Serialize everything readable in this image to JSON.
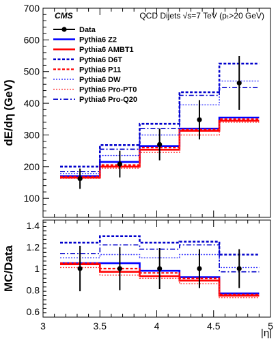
{
  "experiment": "CMS",
  "header": "QCD Dijets  √s=7 TeV (pₜ>20 GeV)",
  "chart_data": [
    {
      "type": "line",
      "panel": "upper",
      "ylabel": "dE/dη (GeV)",
      "xlabel": "",
      "ylim": [
        40,
        700
      ],
      "xlim": [
        3.0,
        5.0
      ],
      "yticks": [
        100,
        200,
        300,
        400,
        500,
        600,
        700
      ],
      "grid": false,
      "legend_position": "top-left",
      "bin_edges": [
        3.15,
        3.5,
        3.85,
        4.2,
        4.55,
        4.9
      ],
      "data": {
        "name": "Data",
        "x": [
          3.325,
          3.675,
          4.025,
          4.375,
          4.725
        ],
        "y": [
          162,
          208,
          270,
          348,
          464
        ],
        "err": [
          32,
          42,
          50,
          62,
          85
        ],
        "color": "#000000"
      },
      "series": [
        {
          "name": "Pythia6 Z2",
          "color": "#0000ff",
          "dash": "solid",
          "width": 2.6,
          "values": [
            170,
            215,
            265,
            320,
            355
          ]
        },
        {
          "name": "Pythia6 AMBT1",
          "color": "#ff0000",
          "dash": "solid",
          "width": 2.6,
          "values": [
            165,
            200,
            253,
            313,
            345
          ]
        },
        {
          "name": "Pythia6 D6T",
          "color": "#0000cc",
          "dash": "dotted-heavy",
          "width": 2.6,
          "values": [
            200,
            268,
            335,
            435,
            525
          ]
        },
        {
          "name": "Pythia6 P11",
          "color": "#ff0000",
          "dash": "dotted-heavy",
          "width": 2.2,
          "values": [
            168,
            205,
            260,
            317,
            350
          ]
        },
        {
          "name": "Pythia6 DW",
          "color": "#3333ff",
          "dash": "dotted",
          "width": 1.4,
          "values": [
            178,
            235,
            300,
            395,
            470
          ]
        },
        {
          "name": "Pythia6 Pro-PT0",
          "color": "#ff3333",
          "dash": "dotted",
          "width": 1.4,
          "values": [
            163,
            195,
            245,
            300,
            340
          ]
        },
        {
          "name": "Pythia6 Pro-Q20",
          "color": "#0000cc",
          "dash": "dashdot",
          "width": 1.6,
          "values": [
            185,
            255,
            320,
            425,
            450
          ]
        }
      ]
    },
    {
      "type": "line",
      "panel": "lower",
      "ylabel": "MC/Data",
      "xlabel": "|η|",
      "ylim": [
        0.55,
        1.45
      ],
      "xlim": [
        3.0,
        5.0
      ],
      "yticks": [
        0.6,
        0.8,
        1.0,
        1.2,
        1.4
      ],
      "xticks": [
        3,
        3.5,
        4,
        4.5,
        5
      ],
      "grid": false,
      "bin_edges": [
        3.15,
        3.5,
        3.85,
        4.2,
        4.55,
        4.9
      ],
      "data": {
        "name": "Data",
        "x": [
          3.325,
          3.675,
          4.025,
          4.375,
          4.725
        ],
        "y": [
          1.0,
          1.0,
          1.0,
          1.0,
          1.0
        ],
        "err": [
          0.21,
          0.2,
          0.19,
          0.18,
          0.18
        ],
        "color": "#000000"
      },
      "series": [
        {
          "name": "Pythia6 Z2",
          "color": "#0000ff",
          "dash": "solid",
          "width": 2.6,
          "values": [
            1.05,
            1.05,
            0.98,
            0.92,
            0.77
          ]
        },
        {
          "name": "Pythia6 AMBT1",
          "color": "#ff0000",
          "dash": "solid",
          "width": 2.6,
          "values": [
            1.04,
            0.97,
            0.93,
            0.89,
            0.75
          ]
        },
        {
          "name": "Pythia6 D6T",
          "color": "#0000cc",
          "dash": "dotted-heavy",
          "width": 2.6,
          "values": [
            1.24,
            1.3,
            1.24,
            1.25,
            1.13
          ]
        },
        {
          "name": "Pythia6 P11",
          "color": "#ff0000",
          "dash": "dotted-heavy",
          "width": 2.2,
          "values": [
            1.05,
            1.0,
            0.96,
            0.91,
            0.76
          ]
        },
        {
          "name": "Pythia6 DW",
          "color": "#3333ff",
          "dash": "dotted",
          "width": 1.4,
          "values": [
            1.1,
            1.13,
            1.1,
            1.13,
            1.01
          ]
        },
        {
          "name": "Pythia6 Pro-PT0",
          "color": "#ff3333",
          "dash": "dotted",
          "width": 1.4,
          "values": [
            1.01,
            0.94,
            0.91,
            0.86,
            0.73
          ]
        },
        {
          "name": "Pythia6 Pro-Q20",
          "color": "#0000cc",
          "dash": "dashdot",
          "width": 1.6,
          "values": [
            1.14,
            1.22,
            1.18,
            1.22,
            0.97
          ]
        }
      ]
    }
  ]
}
